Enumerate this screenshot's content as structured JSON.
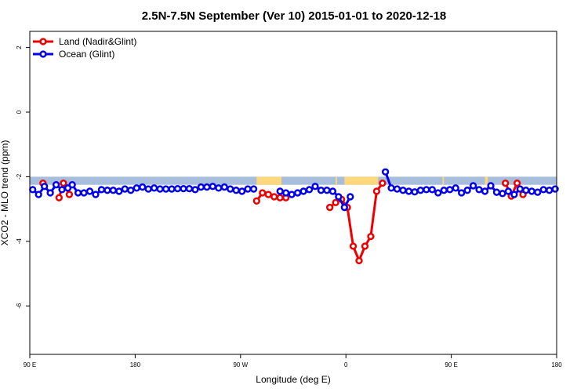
{
  "chart_data": {
    "type": "line",
    "title": "2.5N-7.5N September (Ver 10)   2015-01-01 to 2020-12-18",
    "xlabel": "Longitude (deg E)",
    "ylabel": "XCO2 - MLO trend (ppm)",
    "xlim": [
      90,
      450
    ],
    "ylim": [
      -7.5,
      2.5
    ],
    "x_ticks": [
      90,
      162,
      234,
      306,
      378,
      450
    ],
    "x_tick_labels": [
      "90 E",
      "180",
      "90 W",
      "0",
      "90 E",
      "180"
    ],
    "y_ticks": [
      2,
      0,
      -2,
      -4,
      -6
    ],
    "y_tick_labels": [
      "2",
      "0",
      "-2",
      "-4",
      "-6"
    ],
    "grid": false,
    "legend_position": "top-left",
    "colors": {
      "land": "#ee0000",
      "ocean": "#0000ee",
      "band_ocean": "#a6bddb",
      "band_land": "#fdd77c"
    },
    "surface_band": {
      "y_top": -2.0,
      "y_bottom": -2.25,
      "land_segments": [
        [
          245,
          262
        ],
        [
          299,
          300
        ],
        [
          305,
          328
        ],
        [
          372,
          373
        ],
        [
          401,
          403
        ]
      ]
    },
    "series": [
      {
        "name": "Land (Nadir&Glint)",
        "color": "#ee0000",
        "x": [
          99,
          110,
          113,
          117,
          245,
          249,
          253,
          257,
          261,
          265,
          295,
          299,
          303,
          307,
          311,
          315,
          319,
          323,
          327,
          331,
          415,
          419,
          423,
          427
        ],
        "y": [
          -2.2,
          -2.65,
          -2.2,
          -2.55,
          -2.75,
          -2.5,
          -2.55,
          -2.62,
          -2.65,
          -2.65,
          -2.95,
          -2.8,
          -2.7,
          -2.95,
          -4.15,
          -4.6,
          -4.15,
          -3.85,
          -2.45,
          -2.2,
          -2.2,
          -2.6,
          -2.2,
          -2.55
        ]
      },
      {
        "name": "Ocean (Glint)",
        "color": "#0000ee",
        "x": [
          92,
          96,
          100,
          104,
          108,
          112,
          116,
          119,
          123,
          127,
          131,
          135,
          139,
          143,
          147,
          151,
          155,
          159,
          163,
          167,
          171,
          175,
          179,
          183,
          187,
          191,
          195,
          199,
          203,
          207,
          211,
          215,
          219,
          223,
          227,
          231,
          235,
          239,
          243,
          261,
          265,
          269,
          273,
          277,
          281,
          285,
          289,
          293,
          297,
          301,
          305,
          309,
          333,
          337,
          341,
          345,
          349,
          353,
          357,
          361,
          365,
          369,
          373,
          377,
          381,
          385,
          389,
          393,
          397,
          401,
          405,
          409,
          413,
          417,
          421,
          425,
          429,
          433,
          437,
          441,
          445,
          449
        ],
        "y": [
          -2.4,
          -2.55,
          -2.3,
          -2.5,
          -2.25,
          -2.4,
          -2.35,
          -2.25,
          -2.5,
          -2.5,
          -2.45,
          -2.55,
          -2.4,
          -2.42,
          -2.42,
          -2.45,
          -2.38,
          -2.42,
          -2.35,
          -2.32,
          -2.38,
          -2.35,
          -2.38,
          -2.38,
          -2.38,
          -2.37,
          -2.37,
          -2.37,
          -2.4,
          -2.32,
          -2.32,
          -2.3,
          -2.35,
          -2.32,
          -2.38,
          -2.42,
          -2.45,
          -2.38,
          -2.38,
          -2.45,
          -2.5,
          -2.55,
          -2.5,
          -2.45,
          -2.4,
          -2.3,
          -2.42,
          -2.42,
          -2.45,
          -2.62,
          -2.95,
          -2.62,
          -1.85,
          -2.35,
          -2.38,
          -2.42,
          -2.45,
          -2.47,
          -2.42,
          -2.4,
          -2.4,
          -2.5,
          -2.42,
          -2.4,
          -2.35,
          -2.5,
          -2.42,
          -2.28,
          -2.4,
          -2.45,
          -2.28,
          -2.48,
          -2.52,
          -2.45,
          -2.55,
          -2.38,
          -2.42,
          -2.45,
          -2.48,
          -2.4,
          -2.42,
          -2.38
        ]
      }
    ]
  }
}
